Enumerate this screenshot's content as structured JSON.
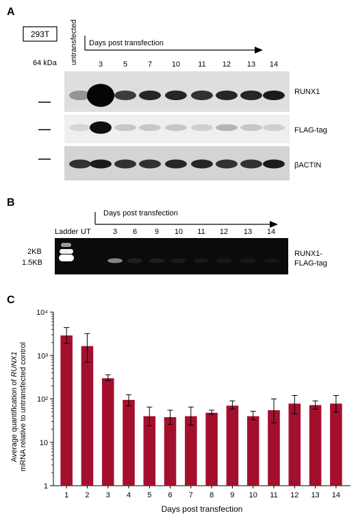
{
  "panel_a": {
    "label": "A",
    "cell_line": "293T",
    "marker": "64 kDa",
    "untransfected_label": "untransfected",
    "days_caption": "Days post transfection",
    "lanes": [
      "3",
      "5",
      "7",
      "10",
      "11",
      "12",
      "13",
      "14"
    ],
    "blots": [
      {
        "label": "RUNX1",
        "intensities": [
          0.35,
          1.0,
          0.75,
          0.85,
          0.85,
          0.8,
          0.85,
          0.85,
          0.9
        ]
      },
      {
        "label": "FLAG-tag",
        "intensities": [
          0.05,
          0.95,
          0.12,
          0.12,
          0.12,
          0.08,
          0.2,
          0.12,
          0.08
        ]
      },
      {
        "label": "βACTIN",
        "intensities": [
          0.8,
          0.9,
          0.8,
          0.8,
          0.85,
          0.85,
          0.8,
          0.8,
          0.9
        ]
      }
    ]
  },
  "panel_b": {
    "label": "B",
    "ladder_label": "Ladder",
    "ut_label": "UT",
    "days_caption": "Days post transfection",
    "lanes": [
      "3",
      "6",
      "9",
      "10",
      "11",
      "12",
      "13",
      "14"
    ],
    "size_markers": [
      "2KB",
      "1.5KB"
    ],
    "band_label_line1": "RUNX1-",
    "band_label_line2": "FLAG-tag",
    "band_intensities": [
      0.7,
      0.1,
      0.08,
      0.06,
      0.06,
      0.05,
      0.05,
      0.04
    ]
  },
  "panel_c": {
    "label": "C"
  },
  "chart_data": {
    "type": "bar",
    "categories": [
      "1",
      "2",
      "3",
      "4",
      "5",
      "6",
      "7",
      "8",
      "9",
      "10",
      "11",
      "12",
      "13",
      "14"
    ],
    "values": [
      2900,
      1650,
      300,
      95,
      40,
      38,
      40,
      48,
      70,
      40,
      55,
      78,
      72,
      78
    ],
    "errors_upper": [
      4400,
      3200,
      360,
      125,
      65,
      55,
      65,
      55,
      90,
      52,
      100,
      120,
      90,
      120
    ],
    "errors_lower": [
      1900,
      700,
      265,
      70,
      24,
      26,
      25,
      44,
      58,
      33,
      28,
      45,
      58,
      50
    ],
    "scale": "log",
    "ylim": [
      1,
      10000
    ],
    "yticks": [
      "1",
      "10",
      "10²",
      "10³",
      "10⁴"
    ],
    "xlabel": "Days post transfection",
    "ylabel_parts": [
      "Average quantification of ",
      "RUNX1",
      " mRNA relative to untransfected control"
    ],
    "bar_color": "#a3102e",
    "grid": false
  }
}
